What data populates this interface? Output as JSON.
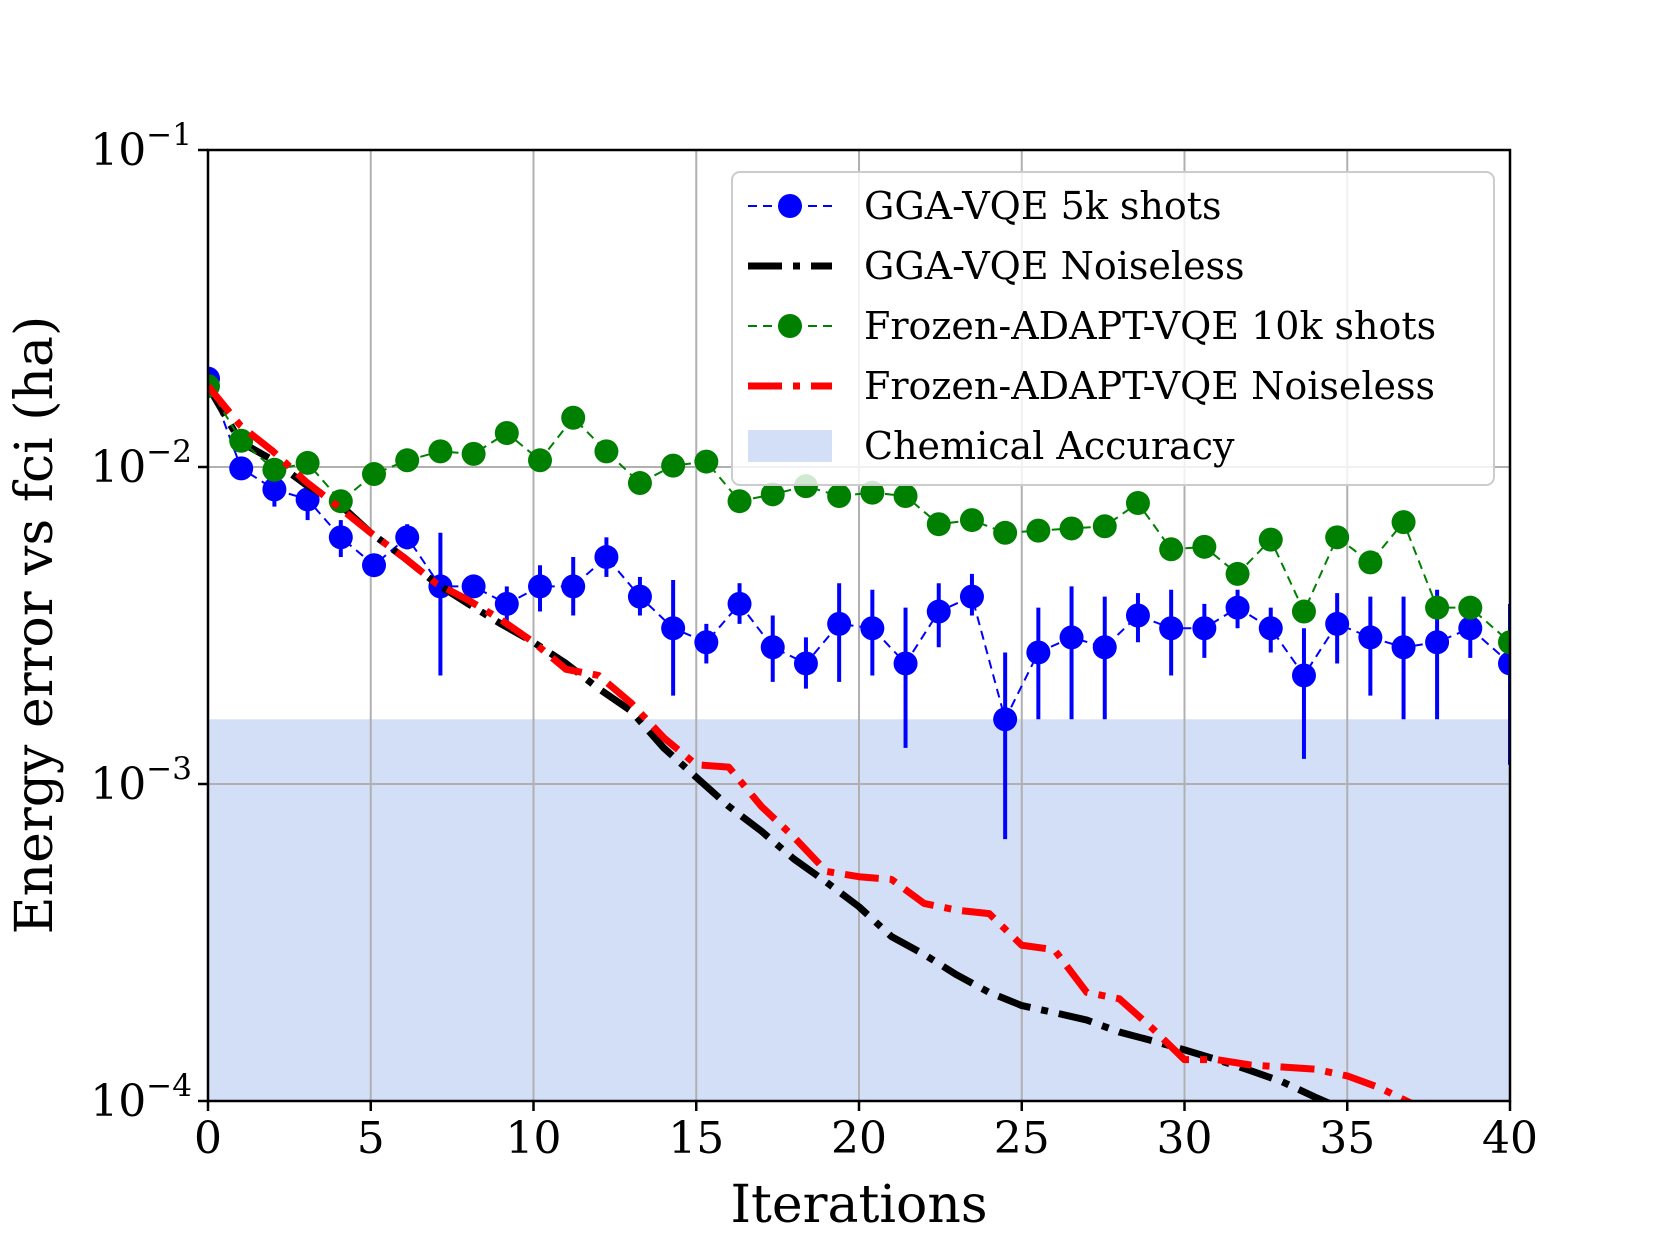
{
  "chart_data": {
    "type": "line",
    "title": "",
    "xlabel": "Iterations",
    "ylabel": "Energy error vs fci (ha)",
    "xlim": [
      0,
      40
    ],
    "ylim": [
      0.0001,
      0.1
    ],
    "yscale": "log",
    "grid": true,
    "legend_position": "top-right",
    "x_ticks": [
      "0",
      "5",
      "10",
      "15",
      "20",
      "25",
      "30",
      "35",
      "40"
    ],
    "y_ticks": [
      {
        "base": "10",
        "exp": "−4",
        "value": 0.0001
      },
      {
        "base": "10",
        "exp": "−3",
        "value": 0.001
      },
      {
        "base": "10",
        "exp": "−2",
        "value": 0.01
      },
      {
        "base": "10",
        "exp": "−1",
        "value": 0.1
      }
    ],
    "band": {
      "name": "Chemical Accuracy",
      "ymin": 0.0001,
      "ymax": 0.0016,
      "color": "#d3dff7"
    },
    "series": [
      {
        "name": "GGA-VQE 5k shots",
        "style": "dashed-markers",
        "color": "#0000ff",
        "x": [
          0,
          1.02,
          2.04,
          3.06,
          4.08,
          5.1,
          6.12,
          7.14,
          8.16,
          9.18,
          10.2,
          11.22,
          12.24,
          13.27,
          14.29,
          15.31,
          16.33,
          17.35,
          18.37,
          19.39,
          20.41,
          21.43,
          22.45,
          23.47,
          24.49,
          25.51,
          26.53,
          27.55,
          28.57,
          29.59,
          30.61,
          31.63,
          32.65,
          33.67,
          34.69,
          35.71,
          36.73,
          37.76,
          38.78,
          40
        ],
        "y": [
          0.019,
          0.0099,
          0.0085,
          0.0079,
          0.006,
          0.0049,
          0.006,
          0.0042,
          0.0042,
          0.0037,
          0.0042,
          0.0042,
          0.0052,
          0.0039,
          0.0031,
          0.0028,
          0.0037,
          0.0027,
          0.0024,
          0.0032,
          0.0031,
          0.0024,
          0.0035,
          0.0039,
          0.0016,
          0.0026,
          0.0029,
          0.0027,
          0.0034,
          0.0031,
          0.0031,
          0.0036,
          0.0031,
          0.0022,
          0.0032,
          0.0029,
          0.0027,
          0.0028,
          0.0031,
          0.0024
        ],
        "err_low": [
          0.019,
          0.0099,
          0.0075,
          0.0068,
          0.0052,
          0.0049,
          0.0055,
          0.0022,
          0.0039,
          0.0032,
          0.0035,
          0.0034,
          0.0045,
          0.0034,
          0.0019,
          0.0024,
          0.0032,
          0.0021,
          0.002,
          0.0021,
          0.0022,
          0.0013,
          0.0027,
          0.0034,
          0.00067,
          0.0016,
          0.0016,
          0.0016,
          0.0028,
          0.0022,
          0.0025,
          0.0031,
          0.0026,
          0.0012,
          0.0024,
          0.0019,
          0.0016,
          0.0016,
          0.0025,
          0.00115
        ],
        "err_high": [
          0.019,
          0.0099,
          0.0093,
          0.0089,
          0.0068,
          0.0049,
          0.0066,
          0.0062,
          0.0045,
          0.0042,
          0.0049,
          0.0052,
          0.006,
          0.0045,
          0.0044,
          0.0032,
          0.0043,
          0.0034,
          0.0029,
          0.0043,
          0.0041,
          0.0036,
          0.0043,
          0.0046,
          0.0026,
          0.0036,
          0.0042,
          0.0039,
          0.004,
          0.0041,
          0.0037,
          0.0041,
          0.0036,
          0.0031,
          0.004,
          0.0039,
          0.0039,
          0.0041,
          0.0037,
          0.0037
        ]
      },
      {
        "name": "GGA-VQE Noiseless",
        "style": "dashdot",
        "color": "#000000",
        "x": [
          0,
          1,
          2,
          3,
          4,
          5,
          6,
          7,
          8,
          9,
          10,
          11,
          12,
          13,
          14,
          15,
          16,
          17,
          18,
          19,
          20,
          21,
          22,
          23,
          24,
          25,
          26,
          27,
          28,
          29,
          30,
          31,
          32,
          33,
          34,
          35
        ],
        "y": [
          0.018,
          0.012,
          0.0105,
          0.0088,
          0.0077,
          0.0062,
          0.0052,
          0.0043,
          0.0037,
          0.0032,
          0.0028,
          0.0024,
          0.002,
          0.0017,
          0.0013,
          0.00105,
          0.00085,
          0.00071,
          0.00058,
          0.00049,
          0.00041,
          0.00033,
          0.00029,
          0.00025,
          0.00022,
          0.0002,
          0.00019,
          0.00018,
          0.000165,
          0.000155,
          0.000145,
          0.000135,
          0.000125,
          0.000115,
          0.000103,
          9.3e-05
        ]
      },
      {
        "name": "Frozen-ADAPT-VQE 10k shots",
        "style": "dashed-markers",
        "color": "#008000",
        "x": [
          0,
          1.02,
          2.04,
          3.06,
          4.08,
          5.1,
          6.12,
          7.14,
          8.16,
          9.18,
          10.2,
          11.22,
          12.24,
          13.27,
          14.29,
          15.31,
          16.33,
          17.35,
          18.37,
          19.39,
          20.41,
          21.43,
          22.45,
          23.47,
          24.49,
          25.51,
          26.53,
          27.55,
          28.57,
          29.59,
          30.61,
          31.63,
          32.65,
          33.67,
          34.69,
          35.71,
          36.73,
          37.76,
          38.78,
          40
        ],
        "y": [
          0.018,
          0.0121,
          0.0098,
          0.0103,
          0.0078,
          0.0095,
          0.0105,
          0.0112,
          0.011,
          0.0128,
          0.0105,
          0.0143,
          0.0112,
          0.0089,
          0.0101,
          0.0104,
          0.0078,
          0.0082,
          0.0087,
          0.0081,
          0.0083,
          0.0081,
          0.0066,
          0.0068,
          0.0062,
          0.0063,
          0.0064,
          0.0065,
          0.0077,
          0.0055,
          0.0056,
          0.0046,
          0.0059,
          0.0035,
          0.006,
          0.005,
          0.0067,
          0.0036,
          0.0036,
          0.0028
        ]
      },
      {
        "name": "Frozen-ADAPT-VQE Noiseless",
        "style": "dashdot",
        "color": "#ff0000",
        "x": [
          0,
          1,
          2,
          3,
          4,
          5,
          6,
          7,
          8,
          9,
          10,
          11,
          12,
          13,
          14,
          15,
          16,
          17,
          18,
          19,
          20,
          21,
          22,
          23,
          24,
          25,
          26,
          27,
          28,
          29,
          30,
          31,
          32,
          33,
          34,
          35,
          36,
          37,
          38
        ],
        "y": [
          0.018,
          0.0135,
          0.0112,
          0.009,
          0.0075,
          0.0062,
          0.0052,
          0.0043,
          0.0038,
          0.0033,
          0.0028,
          0.0023,
          0.0022,
          0.0018,
          0.0014,
          0.00115,
          0.00113,
          0.00085,
          0.00068,
          0.00053,
          0.00051,
          0.0005,
          0.00042,
          0.0004,
          0.00039,
          0.00031,
          0.0003,
          0.00022,
          0.00021,
          0.00017,
          0.000135,
          0.000135,
          0.00013,
          0.000128,
          0.000126,
          0.00012,
          0.00011,
          9.8e-05,
          9e-05
        ]
      }
    ],
    "legend": [
      {
        "label": "GGA-VQE 5k shots",
        "kind": "marker-line",
        "color": "#0000ff"
      },
      {
        "label": "GGA-VQE Noiseless",
        "kind": "dashdot",
        "color": "#000000"
      },
      {
        "label": "Frozen-ADAPT-VQE 10k shots",
        "kind": "marker-line",
        "color": "#008000"
      },
      {
        "label": "Frozen-ADAPT-VQE Noiseless",
        "kind": "dashdot",
        "color": "#ff0000"
      },
      {
        "label": "Chemical Accuracy",
        "kind": "patch",
        "color": "#d3dff7"
      }
    ]
  }
}
